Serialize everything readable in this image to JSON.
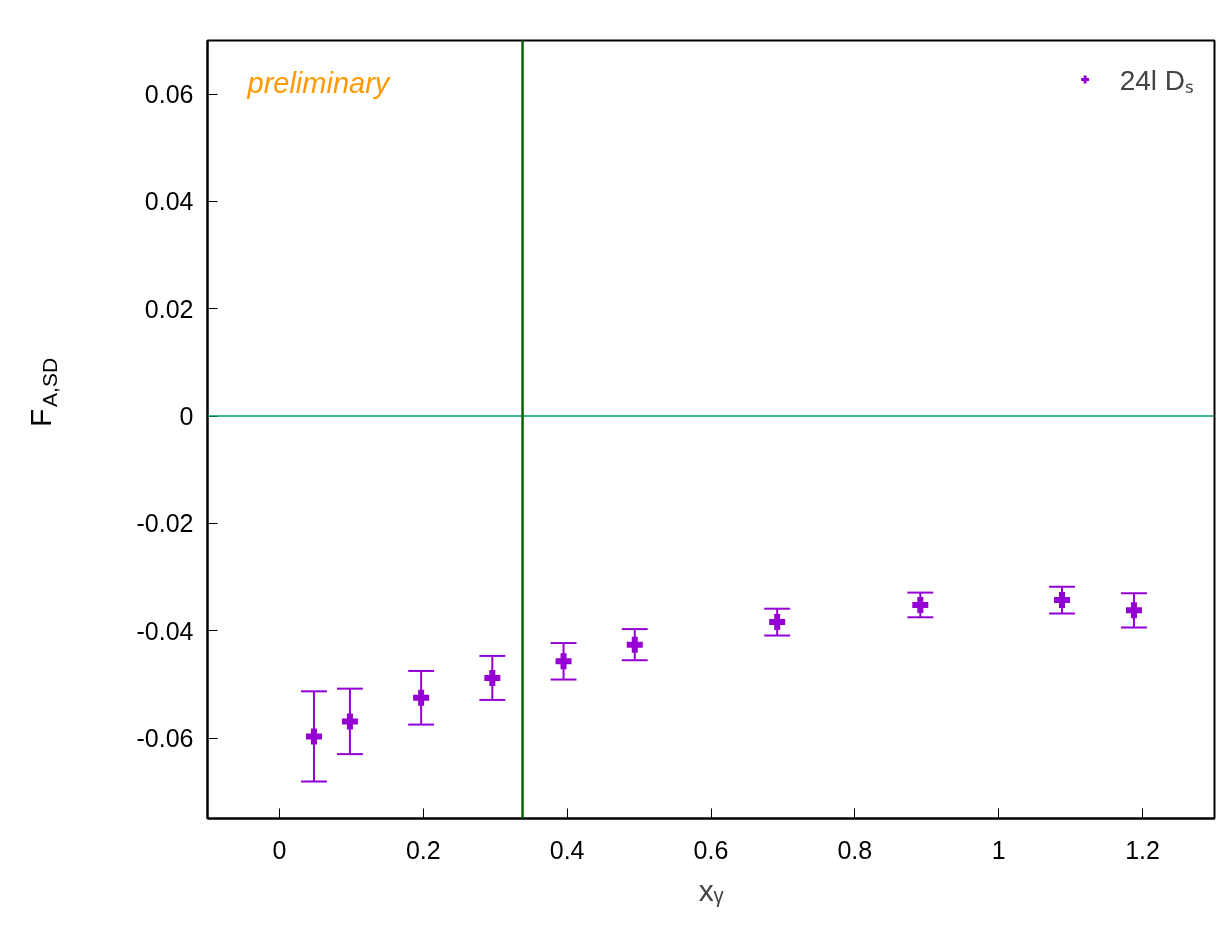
{
  "chart_data": {
    "type": "scatter",
    "xlabel": "xᵧ",
    "ylabel": "F$_{A,SD}$",
    "x": [
      0.048,
      0.098,
      0.197,
      0.296,
      0.395,
      0.494,
      0.692,
      0.891,
      1.088,
      1.188
    ],
    "series": [
      {
        "name": "24l Dₛ",
        "color": "#9400d3",
        "values": [
          -0.0597,
          -0.0569,
          -0.0525,
          -0.0488,
          -0.0457,
          -0.0426,
          -0.0384,
          -0.0352,
          -0.0343,
          -0.0362
        ],
        "errors": [
          0.0084,
          0.0061,
          0.005,
          0.0041,
          0.0034,
          0.0029,
          0.0025,
          0.0023,
          0.0025,
          0.0032
        ]
      }
    ],
    "xlim": [
      -0.1,
      1.3
    ],
    "ylim": [
      -0.075,
      0.07
    ],
    "xticks": [
      0,
      0.2,
      0.4,
      0.6,
      0.8,
      1,
      1.2
    ],
    "yticks": [
      -0.06,
      -0.04,
      -0.02,
      0,
      0.02,
      0.04,
      0.06
    ],
    "ref_lines": [
      {
        "axis": "y",
        "value": 0,
        "color": "#009e73"
      },
      {
        "axis": "x",
        "value": 0.338,
        "color": "#006400"
      }
    ],
    "annotations": [
      "preliminary"
    ],
    "marker": "cross",
    "legend": "top right",
    "grid": false
  }
}
